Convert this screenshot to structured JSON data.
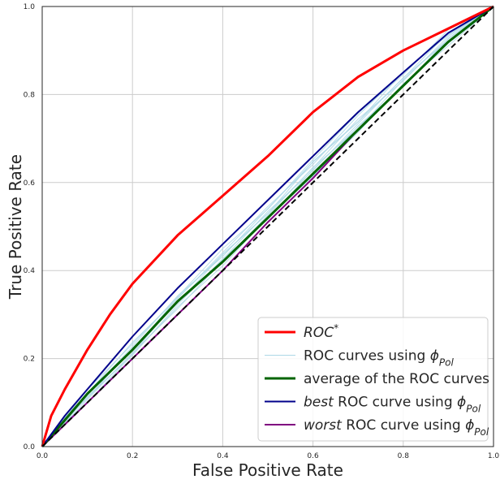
{
  "chart_data": {
    "type": "line",
    "title": "",
    "xlabel": "False Positive Rate",
    "ylabel": "True Positive Rate",
    "xlim": [
      0,
      1
    ],
    "ylim": [
      0,
      1
    ],
    "grid": true,
    "legend_placement": "lower-right",
    "x_ticks": [
      "0.0",
      "0.2",
      "0.4",
      "0.6",
      "0.8",
      "1.0"
    ],
    "y_ticks": [
      "0.0",
      "0.2",
      "0.4",
      "0.6",
      "0.8",
      "1.0"
    ],
    "legend": [
      {
        "id": "roc-star",
        "label_parts": [
          {
            "t": "ROC",
            "i": true
          },
          {
            "t": "*",
            "sup": true
          }
        ]
      },
      {
        "id": "roc-curves-phi",
        "label_parts": [
          {
            "t": "ROC curves using "
          },
          {
            "t": "ϕ",
            "i": true
          },
          {
            "t": "Pol",
            "sub": true,
            "i": true
          }
        ]
      },
      {
        "id": "average",
        "label_parts": [
          {
            "t": "average of the ROC curves"
          }
        ]
      },
      {
        "id": "best",
        "label_parts": [
          {
            "t": "best",
            "i": true
          },
          {
            "t": " ROC curve using "
          },
          {
            "t": "ϕ",
            "i": true
          },
          {
            "t": "Pol",
            "sub": true,
            "i": true
          }
        ]
      },
      {
        "id": "worst",
        "label_parts": [
          {
            "t": "worst",
            "i": true
          },
          {
            "t": " ROC curve using "
          },
          {
            "t": "ϕ",
            "i": true
          },
          {
            "t": "Pol",
            "sub": true,
            "i": true
          }
        ]
      }
    ],
    "series": [
      {
        "id": "roc-star",
        "color": "#ff0000",
        "width": 3,
        "x": [
          0,
          0.02,
          0.05,
          0.1,
          0.15,
          0.2,
          0.3,
          0.4,
          0.5,
          0.6,
          0.7,
          0.8,
          0.9,
          1.0
        ],
        "y": [
          0,
          0.07,
          0.13,
          0.22,
          0.3,
          0.37,
          0.48,
          0.57,
          0.66,
          0.76,
          0.84,
          0.9,
          0.95,
          1.0
        ]
      },
      {
        "id": "best",
        "color": "#00008b",
        "width": 2,
        "x": [
          0,
          0.05,
          0.1,
          0.2,
          0.3,
          0.4,
          0.5,
          0.6,
          0.7,
          0.8,
          0.9,
          1.0
        ],
        "y": [
          0,
          0.07,
          0.13,
          0.25,
          0.36,
          0.46,
          0.56,
          0.66,
          0.76,
          0.85,
          0.94,
          1.0
        ]
      },
      {
        "id": "average",
        "color": "#006400",
        "width": 3,
        "x": [
          0,
          0.05,
          0.1,
          0.2,
          0.3,
          0.4,
          0.5,
          0.6,
          0.7,
          0.8,
          0.9,
          1.0
        ],
        "y": [
          0,
          0.06,
          0.12,
          0.22,
          0.33,
          0.42,
          0.52,
          0.62,
          0.72,
          0.82,
          0.92,
          1.0
        ]
      },
      {
        "id": "worst",
        "color": "#800080",
        "width": 2,
        "x": [
          0,
          0.1,
          0.2,
          0.3,
          0.4,
          0.5,
          0.6,
          0.7,
          0.8,
          0.9,
          1.0
        ],
        "y": [
          0,
          0.1,
          0.2,
          0.3,
          0.4,
          0.51,
          0.61,
          0.72,
          0.82,
          0.92,
          1.0
        ]
      },
      {
        "id": "chance",
        "color": "#000000",
        "width": 2,
        "dashed": true,
        "x": [
          0,
          1
        ],
        "y": [
          0,
          1
        ]
      }
    ],
    "band": {
      "id": "roc-curves-phi",
      "color": "#add8e6",
      "count": 10,
      "x": [
        0,
        0.05,
        0.1,
        0.2,
        0.3,
        0.4,
        0.5,
        0.6,
        0.7,
        0.8,
        0.9,
        1.0
      ],
      "lower": [
        0,
        0.05,
        0.1,
        0.2,
        0.31,
        0.41,
        0.51,
        0.61,
        0.71,
        0.81,
        0.91,
        1.0
      ],
      "upper": [
        0,
        0.07,
        0.13,
        0.24,
        0.35,
        0.45,
        0.55,
        0.66,
        0.76,
        0.86,
        0.95,
        1.0
      ]
    }
  }
}
